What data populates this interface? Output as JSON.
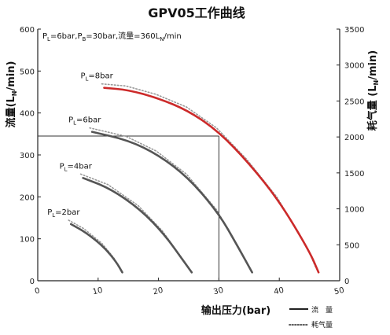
{
  "chart_data": {
    "type": "line",
    "title": "GPV05工作曲线",
    "conditions": {
      "a": "6bar",
      "b": "30bar",
      "flow": "360L",
      "flow_unit": "/min"
    },
    "xlabel": "输出压力(bar)",
    "ylabel_left": "流量(L",
    "ylabel_left_sub": "N",
    "ylabel_left_tail": "/min)",
    "ylabel_right": "耗气量 (L",
    "ylabel_right_sub": "N",
    "ylabel_right_tail": "/min)",
    "xlim": [
      0,
      50
    ],
    "ylim_left": [
      0,
      600
    ],
    "ylim_right": [
      0,
      3500
    ],
    "x_ticks": [
      "0",
      "10",
      "20",
      "30",
      "40",
      "50"
    ],
    "y_ticks_left": [
      "0",
      "100",
      "200",
      "300",
      "400",
      "500",
      "600"
    ],
    "y_ticks_right": [
      "0",
      "500",
      "1000",
      "1500",
      "2000",
      "2500",
      "3000",
      "3500"
    ],
    "series": [
      {
        "label": "P",
        "label_sub": "L",
        "label_tail": "=8bar",
        "color": "#cc2a2a",
        "x": [
          11,
          15,
          20,
          25,
          30,
          35,
          40,
          45,
          46.5
        ],
        "y": [
          460,
          455,
          435,
          405,
          355,
          280,
          190,
          70,
          20
        ]
      },
      {
        "label": "P",
        "label_sub": "L",
        "label_tail": "=6bar",
        "color": "#555555",
        "x": [
          9,
          15,
          20,
          25,
          30,
          33,
          35.5
        ],
        "y": [
          355,
          335,
          300,
          245,
          160,
          85,
          20
        ]
      },
      {
        "label": "P",
        "label_sub": "L",
        "label_tail": "=4bar",
        "color": "#555555",
        "x": [
          7.5,
          12,
          17,
          21,
          24,
          25.5
        ],
        "y": [
          245,
          220,
          170,
          110,
          50,
          20
        ]
      },
      {
        "label": "P",
        "label_sub": "L",
        "label_tail": "=2bar",
        "color": "#555555",
        "x": [
          5.5,
          8,
          11,
          13,
          14
        ],
        "y": [
          135,
          115,
          80,
          45,
          20
        ]
      }
    ],
    "reference_point": {
      "x": 30,
      "y": 345
    },
    "legend": [
      {
        "label": "流　量",
        "style": "solid"
      },
      {
        "label": "耗气量",
        "style": "dotted"
      }
    ]
  }
}
